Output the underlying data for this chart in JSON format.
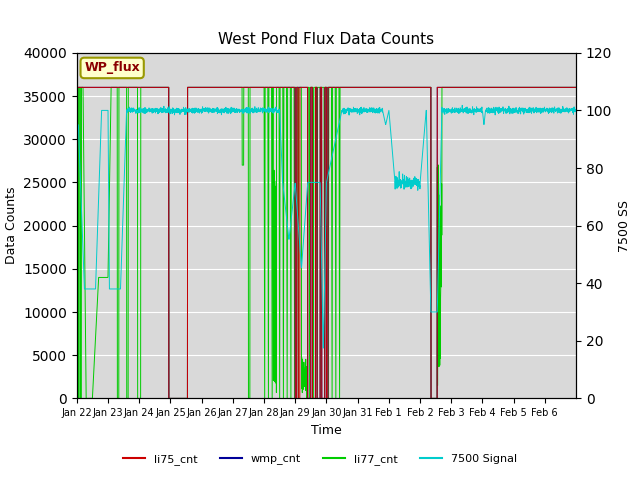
{
  "title": "West Pond Flux Data Counts",
  "xlabel": "Time",
  "ylabel_left": "Data Counts",
  "ylabel_right": "7500 SS",
  "ylim_left": [
    0,
    40000
  ],
  "ylim_right": [
    0,
    120
  ],
  "yticks_left": [
    0,
    5000,
    10000,
    15000,
    20000,
    25000,
    30000,
    35000,
    40000
  ],
  "yticks_right": [
    0,
    20,
    40,
    60,
    80,
    100,
    120
  ],
  "bg_color": "#d9d9d9",
  "legend_label": "WP_flux",
  "legend_bg": "#ffffcc",
  "legend_border": "#999900",
  "series_colors": {
    "li75_cnt": "#cc0000",
    "wmp_cnt": "#000099",
    "li77_cnt": "#00cc00",
    "7500 Signal": "#00cccc"
  },
  "num_days": 16,
  "xtick_labels": [
    "Jan 22",
    "Jan 23",
    "Jan 24",
    "Jan 25",
    "Jan 26",
    "Jan 27",
    "Jan 28",
    "Jan 29",
    "Jan 30",
    "Jan 31",
    "Feb 1",
    "Feb 2",
    "Feb 3",
    "Feb 4",
    "Feb 5",
    "Feb 6"
  ]
}
